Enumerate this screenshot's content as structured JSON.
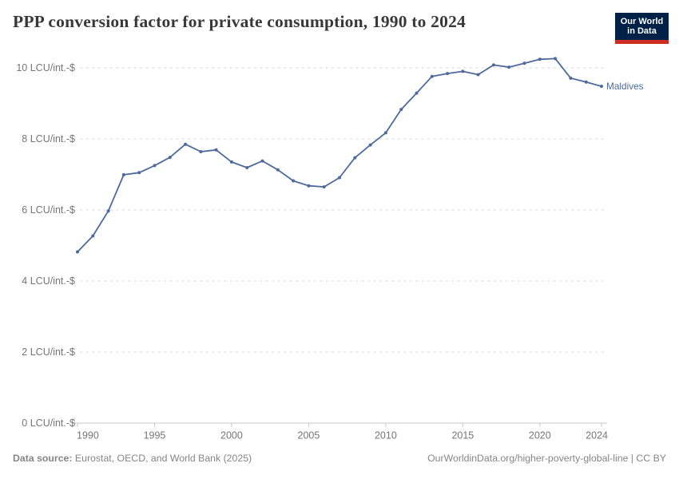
{
  "header": {
    "title": "PPP conversion factor for private consumption, 1990 to 2024",
    "logo": {
      "line1": "Our World",
      "line2": "in Data",
      "bg_color": "#002147",
      "accent_color": "#cd2d23"
    }
  },
  "chart_data": {
    "type": "line",
    "title": "PPP conversion factor for private consumption, 1990 to 2024",
    "x": [
      1990,
      1991,
      1992,
      1993,
      1994,
      1995,
      1996,
      1997,
      1998,
      1999,
      2000,
      2001,
      2002,
      2003,
      2004,
      2005,
      2006,
      2007,
      2008,
      2009,
      2010,
      2011,
      2012,
      2013,
      2014,
      2015,
      2016,
      2017,
      2018,
      2019,
      2020,
      2021,
      2022,
      2023,
      2024
    ],
    "series": [
      {
        "name": "Maldives",
        "color": "#4c6a9c",
        "values": [
          4.82,
          5.27,
          5.97,
          6.99,
          7.05,
          7.25,
          7.48,
          7.85,
          7.64,
          7.69,
          7.35,
          7.19,
          7.38,
          7.13,
          6.82,
          6.68,
          6.65,
          6.91,
          7.47,
          7.83,
          8.17,
          8.83,
          9.29,
          9.76,
          9.84,
          9.9,
          9.81,
          10.08,
          10.02,
          10.13,
          10.24,
          10.26,
          9.71,
          9.6,
          9.48
        ]
      }
    ],
    "unit": "LCU/int.-$",
    "yticks": [
      0,
      2,
      4,
      6,
      8,
      10
    ],
    "xticks": [
      1990,
      1995,
      2000,
      2005,
      2010,
      2015,
      2020,
      2024
    ],
    "ylim": [
      0,
      10.5
    ],
    "xlim": [
      1990,
      2024
    ],
    "grid": "horizontal-dashed",
    "legend_position": "end-of-line-label",
    "end_label": "Maldives",
    "tick_color": "#757575",
    "grid_color": "#dadada",
    "axis_color": "#c9c9c9"
  },
  "footer": {
    "source_label": "Data source:",
    "source_text": " Eurostat, OECD, and World Bank (2025)",
    "attribution": "OurWorldinData.org/higher-poverty-global-line | CC BY"
  }
}
